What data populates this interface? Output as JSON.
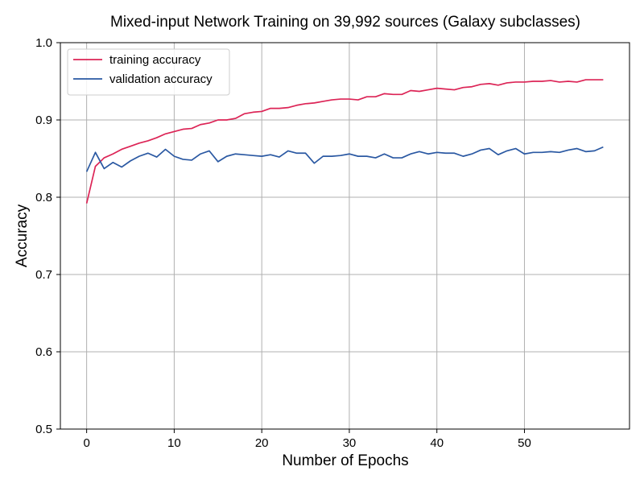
{
  "chart_data": {
    "type": "line",
    "title": "Mixed-input Network Training on 39,992 sources (Galaxy subclasses)",
    "xlabel": "Number of Epochs",
    "ylabel": "Accuracy",
    "xlim": [
      -3,
      62
    ],
    "ylim": [
      0.5,
      1.0
    ],
    "xticks": [
      0,
      10,
      20,
      30,
      40,
      50
    ],
    "yticks": [
      0.5,
      0.6,
      0.7,
      0.8,
      0.9,
      1.0
    ],
    "xtick_labels": [
      "0",
      "10",
      "20",
      "30",
      "40",
      "50"
    ],
    "ytick_labels": [
      "0.5",
      "0.6",
      "0.7",
      "0.8",
      "0.9",
      "1.0"
    ],
    "grid": true,
    "legend_position": "top-left",
    "x": [
      0,
      1,
      2,
      3,
      4,
      5,
      6,
      7,
      8,
      9,
      10,
      11,
      12,
      13,
      14,
      15,
      16,
      17,
      18,
      19,
      20,
      21,
      22,
      23,
      24,
      25,
      26,
      27,
      28,
      29,
      30,
      31,
      32,
      33,
      34,
      35,
      36,
      37,
      38,
      39,
      40,
      41,
      42,
      43,
      44,
      45,
      46,
      47,
      48,
      49,
      50,
      51,
      52,
      53,
      54,
      55,
      56,
      57,
      58,
      59
    ],
    "series": [
      {
        "name": "training accuracy",
        "color": "#dc2456",
        "values": [
          0.792,
          0.84,
          0.851,
          0.856,
          0.862,
          0.866,
          0.87,
          0.873,
          0.877,
          0.882,
          0.885,
          0.888,
          0.889,
          0.894,
          0.896,
          0.9,
          0.9,
          0.902,
          0.908,
          0.91,
          0.911,
          0.915,
          0.915,
          0.916,
          0.919,
          0.921,
          0.922,
          0.924,
          0.926,
          0.927,
          0.927,
          0.926,
          0.93,
          0.93,
          0.934,
          0.933,
          0.933,
          0.938,
          0.937,
          0.939,
          0.941,
          0.94,
          0.939,
          0.942,
          0.943,
          0.946,
          0.947,
          0.945,
          0.948,
          0.949,
          0.949,
          0.95,
          0.95,
          0.951,
          0.949,
          0.95,
          0.949,
          0.952,
          0.952,
          0.952
        ]
      },
      {
        "name": "validation accuracy",
        "color": "#2a58a2",
        "values": [
          0.833,
          0.858,
          0.837,
          0.845,
          0.839,
          0.847,
          0.853,
          0.857,
          0.852,
          0.862,
          0.853,
          0.849,
          0.848,
          0.856,
          0.86,
          0.846,
          0.853,
          0.856,
          0.855,
          0.854,
          0.853,
          0.855,
          0.852,
          0.86,
          0.857,
          0.857,
          0.844,
          0.853,
          0.853,
          0.854,
          0.856,
          0.853,
          0.853,
          0.851,
          0.856,
          0.851,
          0.851,
          0.856,
          0.859,
          0.856,
          0.858,
          0.857,
          0.857,
          0.853,
          0.856,
          0.861,
          0.863,
          0.855,
          0.86,
          0.863,
          0.856,
          0.858,
          0.858,
          0.859,
          0.858,
          0.861,
          0.863,
          0.859,
          0.86,
          0.865
        ]
      }
    ]
  }
}
